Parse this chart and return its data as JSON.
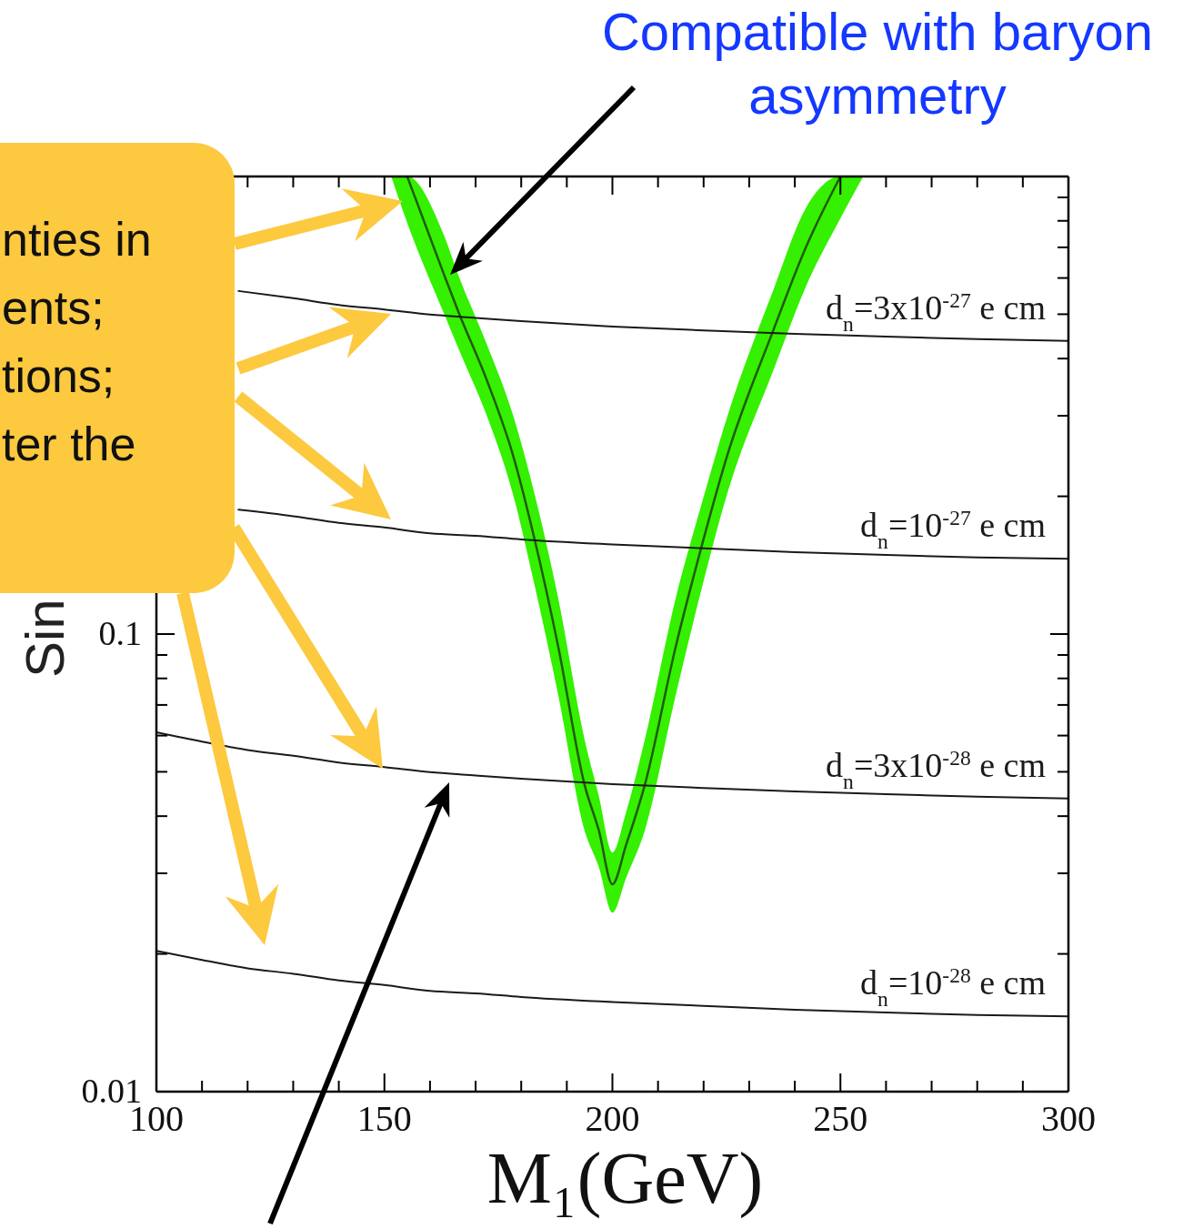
{
  "chart_data": {
    "type": "line",
    "xlabel": "M₁(GeV)",
    "ylabel": "Sin",
    "annotations": [
      "Compatible with baryon asymmetry",
      "nties in\nents;\ntions;\nter the"
    ],
    "xlim": [
      100,
      300
    ],
    "xticks": [
      100,
      {
        "value": 110,
        "label": null
      },
      {
        "value": 120,
        "label": null
      },
      {
        "value": 130,
        "label": null
      },
      {
        "value": 140,
        "label": null
      },
      150,
      {
        "value": 160,
        "label": null
      },
      {
        "value": 170,
        "label": null
      },
      {
        "value": 180,
        "label": null
      },
      {
        "value": 190,
        "label": null
      },
      200,
      {
        "value": 210,
        "label": null
      },
      {
        "value": 220,
        "label": null
      },
      {
        "value": 230,
        "label": null
      },
      {
        "value": 240,
        "label": null
      },
      250,
      {
        "value": 260,
        "label": null
      },
      {
        "value": 270,
        "label": null
      },
      {
        "value": 280,
        "label": null
      },
      {
        "value": 290,
        "label": null
      },
      300
    ],
    "ylim": [
      0.01,
      1
    ],
    "yticks": [
      0.01,
      {
        "value": 0.02,
        "label": null
      },
      {
        "value": 0.03,
        "label": null
      },
      {
        "value": 0.04,
        "label": null
      },
      {
        "value": 0.05,
        "label": null
      },
      {
        "value": 0.06,
        "label": null
      },
      {
        "value": 0.07,
        "label": null
      },
      {
        "value": 0.08,
        "label": null
      },
      {
        "value": 0.09,
        "label": null
      },
      0.1,
      {
        "value": 0.2,
        "label": null
      },
      {
        "value": 0.3,
        "label": null
      },
      {
        "value": 0.4,
        "label": null
      },
      {
        "value": 0.5,
        "label": null
      },
      {
        "value": 0.6,
        "label": null
      },
      {
        "value": 0.7,
        "label": null
      },
      {
        "value": 0.8,
        "label": null
      },
      {
        "value": 0.9,
        "label": null
      }
    ],
    "log": "y",
    "series": [
      {
        "color": "#225a12",
        "x": [
          151.5,
          155,
          163,
          166.4,
          172.4,
          178.2,
          183,
          188.1,
          193.9,
          197,
          200,
          203,
          207.1,
          213.9,
          219.6,
          225.2,
          235.2,
          242.5,
          250,
          255
        ],
        "values": [
          null,
          1.0,
          0.613,
          0.501,
          0.36,
          0.246,
          0.16,
          0.094,
          0.0468,
          0.0373,
          0.0284,
          0.0346,
          0.0468,
          0.094,
          0.156,
          0.246,
          0.459,
          0.703,
          1.0,
          null
        ],
        "lower": [
          1.0,
          0.792,
          0.503,
          0.417,
          0.301,
          0.202,
          0.127,
          0.0737,
          0.0372,
          0.031,
          0.0246,
          0.0293,
          0.0372,
          0.0737,
          0.126,
          0.203,
          0.375,
          0.577,
          0.81,
          1.0
        ],
        "upper": [
          1.0,
          1.0,
          0.746,
          0.602,
          0.431,
          0.301,
          0.201,
          0.12,
          0.0588,
          0.0443,
          0.0333,
          0.0408,
          0.0588,
          0.12,
          0.193,
          0.299,
          0.562,
          0.856,
          1.0,
          1.0
        ]
      },
      {
        "name": "d$_{n}$=3x10$^{-27}$ e cm",
        "color": "#1a1a1a",
        "x": [
          118,
          130,
          140,
          150,
          160,
          170,
          180,
          200,
          220,
          240,
          260,
          280,
          300
        ],
        "values": [
          0.562,
          0.542,
          0.524,
          0.512,
          0.499,
          0.491,
          0.483,
          0.47,
          0.461,
          0.453,
          0.447,
          0.441,
          0.437
        ]
      },
      {
        "name": "d$_{n}$=10$^{-27}$ e cm",
        "color": "#1a1a1a",
        "x": [
          118,
          130,
          140,
          150,
          160,
          170,
          180,
          200,
          220,
          240,
          260,
          280,
          300
        ],
        "values": [
          0.187,
          0.181,
          0.175,
          0.171,
          0.166,
          0.164,
          0.161,
          0.157,
          0.154,
          0.151,
          0.149,
          0.147,
          0.146
        ]
      },
      {
        "name": "d$_{n}$=3x10$^{-28}$ e cm",
        "color": "#1a1a1a",
        "x": [
          100,
          110,
          120,
          130,
          140,
          150,
          160,
          170,
          180,
          200,
          220,
          240,
          260,
          280,
          300
        ],
        "values": [
          0.061,
          0.0582,
          0.0558,
          0.0542,
          0.0524,
          0.0512,
          0.0499,
          0.0491,
          0.0483,
          0.047,
          0.0461,
          0.0453,
          0.0447,
          0.0441,
          0.0437
        ]
      },
      {
        "name": "d$_{n}$=10$^{-28}$ e cm",
        "color": "#1a1a1a",
        "x": [
          100,
          110,
          120,
          130,
          140,
          150,
          160,
          170,
          180,
          200,
          220,
          240,
          260,
          280,
          300
        ],
        "values": [
          0.0203,
          0.0194,
          0.0186,
          0.0181,
          0.0175,
          0.0171,
          0.0166,
          0.0164,
          0.0161,
          0.0157,
          0.0154,
          0.0151,
          0.0149,
          0.0147,
          0.0146
        ]
      }
    ]
  }
}
